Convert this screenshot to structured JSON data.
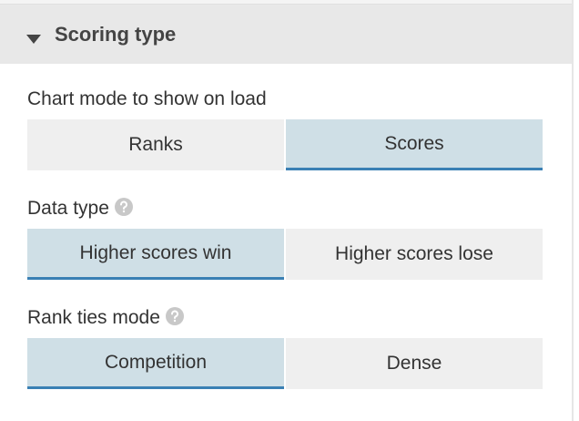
{
  "header": {
    "title": "Scoring type"
  },
  "fields": [
    {
      "label": "Chart mode to show on load",
      "help": false,
      "options": [
        "Ranks",
        "Scores"
      ],
      "selected": 1
    },
    {
      "label": "Data type",
      "help": true,
      "options": [
        "Higher scores win",
        "Higher scores lose"
      ],
      "selected": 0
    },
    {
      "label": "Rank ties mode",
      "help": true,
      "options": [
        "Competition",
        "Dense"
      ],
      "selected": 0
    }
  ]
}
